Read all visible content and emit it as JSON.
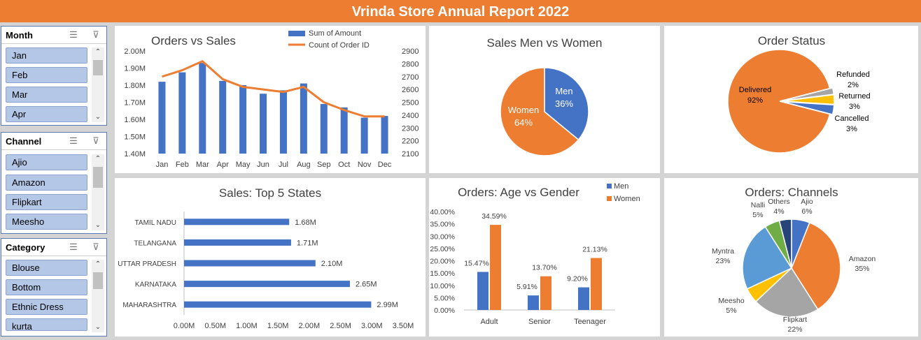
{
  "title": "Vrinda Store Annual Report 2022",
  "slicers": {
    "month": {
      "title": "Month",
      "items": [
        "Jan",
        "Feb",
        "Mar",
        "Apr"
      ]
    },
    "channel": {
      "title": "Channel",
      "items": [
        "Ajio",
        "Amazon",
        "Flipkart",
        "Meesho"
      ]
    },
    "category": {
      "title": "Category",
      "items": [
        "Blouse",
        "Bottom",
        "Ethnic Dress",
        "kurta"
      ]
    }
  },
  "colors": {
    "blue": "#4472c4",
    "orange": "#ed7d31",
    "gray": "#a5a5a5",
    "yellow": "#ffc000",
    "lightblue": "#5b9bd5",
    "green": "#70ad47",
    "navy": "#264478"
  },
  "chart_data": [
    {
      "id": "orders-vs-sales",
      "type": "bar",
      "title": "Orders vs Sales",
      "categories": [
        "Jan",
        "Feb",
        "Mar",
        "Apr",
        "May",
        "Jun",
        "Jul",
        "Aug",
        "Sep",
        "Oct",
        "Nov",
        "Dec"
      ],
      "series": [
        {
          "name": "Sum of Amount",
          "type": "bar",
          "axis": "left",
          "values": [
            1820000,
            1875000,
            1930000,
            1825000,
            1800000,
            1750000,
            1770000,
            1810000,
            1690000,
            1670000,
            1610000,
            1620000
          ]
        },
        {
          "name": "Count of Order ID",
          "type": "line",
          "axis": "right",
          "values": [
            2700,
            2750,
            2820,
            2680,
            2620,
            2600,
            2580,
            2620,
            2500,
            2440,
            2390,
            2390
          ]
        }
      ],
      "ylim": [
        1400000,
        2000000
      ],
      "y2lim": [
        2100,
        2900
      ],
      "yticks": [
        "1.40M",
        "1.50M",
        "1.60M",
        "1.70M",
        "1.80M",
        "1.90M",
        "2.00M"
      ],
      "y2ticks": [
        "2100",
        "2200",
        "2300",
        "2400",
        "2500",
        "2600",
        "2700",
        "2800",
        "2900"
      ],
      "legend": "top"
    },
    {
      "id": "sales-men-women",
      "type": "pie",
      "title": "Sales Men vs Women",
      "labels": [
        "Men",
        "Women"
      ],
      "values": [
        36,
        64
      ],
      "display": [
        "36%",
        "64%"
      ]
    },
    {
      "id": "order-status",
      "type": "pie",
      "title": "Order Status",
      "labels": [
        "Delivered",
        "Refunded",
        "Returned",
        "Cancelled"
      ],
      "values": [
        92,
        2,
        3,
        3
      ],
      "display": [
        "92%",
        "2%",
        "3%",
        "3%"
      ]
    },
    {
      "id": "top-states",
      "type": "bar",
      "orientation": "horizontal",
      "title": "Sales: Top 5 States",
      "categories": [
        "TAMIL NADU",
        "TELANGANA",
        "UTTAR PRADESH",
        "KARNATAKA",
        "MAHARASHTRA"
      ],
      "values": [
        1.68,
        1.71,
        2.1,
        2.65,
        2.99
      ],
      "data_labels": [
        "1.68M",
        "1.71M",
        "2.10M",
        "2.65M",
        "2.99M"
      ],
      "xlim": [
        0,
        3.5
      ],
      "xticks": [
        "0.00M",
        "0.50M",
        "1.00M",
        "1.50M",
        "2.00M",
        "2.50M",
        "3.00M",
        "3.50M"
      ]
    },
    {
      "id": "age-vs-gender",
      "type": "bar",
      "title": "Orders: Age vs Gender",
      "categories": [
        "Adult",
        "Senior",
        "Teenager"
      ],
      "series": [
        {
          "name": "Men",
          "values": [
            15.47,
            5.91,
            9.2
          ],
          "labels": [
            "15.47%",
            "5.91%",
            "9.20%"
          ]
        },
        {
          "name": "Women",
          "values": [
            34.59,
            13.7,
            21.13
          ],
          "labels": [
            "34.59%",
            "13.70%",
            "21.13%"
          ]
        }
      ],
      "ylim": [
        0,
        40
      ],
      "yticks": [
        "0.00%",
        "5.00%",
        "10.00%",
        "15.00%",
        "20.00%",
        "25.00%",
        "30.00%",
        "35.00%",
        "40.00%"
      ],
      "legend": "top-right"
    },
    {
      "id": "channels",
      "type": "pie",
      "title": "Orders: Channels",
      "labels": [
        "Ajio",
        "Amazon",
        "Flipkart",
        "Meesho",
        "Myntra",
        "Nalli",
        "Others"
      ],
      "values": [
        6,
        35,
        22,
        5,
        23,
        5,
        4
      ],
      "display": [
        "6%",
        "35%",
        "22%",
        "5%",
        "23%",
        "5%",
        "4%"
      ]
    }
  ]
}
